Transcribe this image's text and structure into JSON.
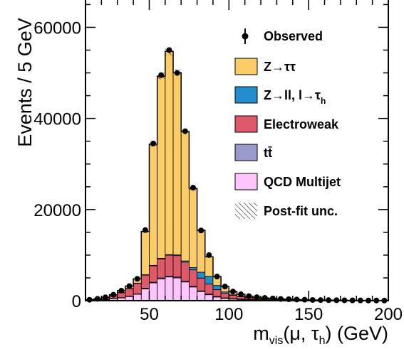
{
  "chart_data": {
    "type": "bar",
    "stacked": true,
    "bin_width": 5,
    "x_edges": [
      10,
      15,
      20,
      25,
      30,
      35,
      40,
      45,
      50,
      55,
      60,
      65,
      70,
      75,
      80,
      85,
      90,
      95,
      100,
      105,
      110,
      115,
      120,
      125,
      130,
      135,
      140,
      145,
      150,
      155,
      160,
      165,
      170,
      175,
      180,
      185,
      190,
      195,
      200
    ],
    "xlabel_main": "m",
    "xlabel_sub": "vis",
    "xlabel_rest": "(μ, τ",
    "xlabel_sub2": "h",
    "xlabel_end": ") (GeV)",
    "ylabel": "Events / 5 GeV",
    "xlim": [
      10,
      200
    ],
    "ylim": [
      0,
      66000
    ],
    "x_ticks": [
      50,
      100,
      150,
      200
    ],
    "x_tick_labels": [
      "50",
      "100",
      "150",
      "200"
    ],
    "y_ticks": [
      0,
      20000,
      40000,
      60000
    ],
    "y_tick_labels": [
      "0",
      "20000",
      "40000",
      "60000"
    ],
    "legend_position": "top-right",
    "series": [
      {
        "name": "QCD Multijet",
        "color": "#fcc6fc",
        "values": [
          40,
          120,
          250,
          400,
          600,
          900,
          1400,
          2600,
          3900,
          4800,
          5200,
          5000,
          4100,
          3000,
          2000,
          1300,
          800,
          500,
          350,
          260,
          200,
          160,
          130,
          110,
          90,
          75,
          60,
          50,
          40,
          30,
          25,
          20,
          15,
          12,
          10,
          8,
          6,
          5
        ]
      },
      {
        "name": "tt̄",
        "color": "#9999cc",
        "values": [
          20,
          30,
          40,
          50,
          60,
          70,
          90,
          120,
          150,
          170,
          180,
          180,
          170,
          160,
          150,
          140,
          130,
          120,
          110,
          100,
          90,
          80,
          70,
          60,
          50,
          45,
          40,
          35,
          30,
          25,
          22,
          20,
          18,
          15,
          12,
          10,
          8,
          6
        ]
      },
      {
        "name": "Electroweak",
        "color": "#de5a6a",
        "values": [
          80,
          160,
          320,
          600,
          1100,
          1700,
          2300,
          2900,
          3600,
          4200,
          4600,
          4700,
          4200,
          3600,
          2800,
          2200,
          1500,
          1000,
          700,
          500,
          380,
          300,
          240,
          190,
          150,
          120,
          95,
          75,
          60,
          48,
          38,
          30,
          24,
          19,
          15,
          12,
          10,
          8
        ]
      },
      {
        "name": "Z→ll, l→τh",
        "color": "#248ecc",
        "values": [
          5,
          8,
          12,
          20,
          30,
          40,
          60,
          80,
          100,
          120,
          140,
          170,
          250,
          500,
          1300,
          1700,
          900,
          300,
          120,
          60,
          30,
          20,
          15,
          10,
          8,
          6,
          5,
          4,
          3,
          3,
          2,
          2,
          2,
          1,
          1,
          1,
          1,
          1
        ]
      },
      {
        "name": "Z→ττ",
        "color": "#fccc66",
        "values": [
          55,
          82,
          128,
          230,
          410,
          490,
          950,
          9500,
          26600,
          40000,
          44600,
          40000,
          28400,
          17400,
          9200,
          4300,
          1970,
          1180,
          720,
          480,
          300,
          200,
          145,
          110,
          82,
          64,
          50,
          41,
          32,
          26,
          23,
          18,
          16,
          13,
          12,
          10,
          8,
          6
        ]
      }
    ],
    "observed": {
      "name": "Observed",
      "x": [
        12.5,
        17.5,
        22.5,
        27.5,
        32.5,
        37.5,
        42.5,
        47.5,
        52.5,
        57.5,
        62.5,
        67.5,
        72.5,
        77.5,
        82.5,
        87.5,
        92.5,
        97.5,
        102.5,
        107.5,
        112.5,
        117.5,
        122.5,
        127.5,
        132.5,
        137.5,
        142.5,
        147.5,
        152.5,
        157.5,
        162.5,
        167.5,
        172.5,
        177.5,
        182.5,
        187.5,
        192.5,
        197.5
      ],
      "y": [
        200,
        400,
        750,
        1300,
        2200,
        3200,
        4800,
        15500,
        34500,
        49500,
        55000,
        50000,
        37200,
        24800,
        15400,
        10000,
        5300,
        3100,
        2000,
        1400,
        1000,
        760,
        600,
        480,
        380,
        310,
        250,
        205,
        165,
        132,
        110,
        90,
        73,
        60,
        50,
        41,
        33,
        26
      ]
    },
    "postfit_unc_label": "Post-fit unc."
  }
}
